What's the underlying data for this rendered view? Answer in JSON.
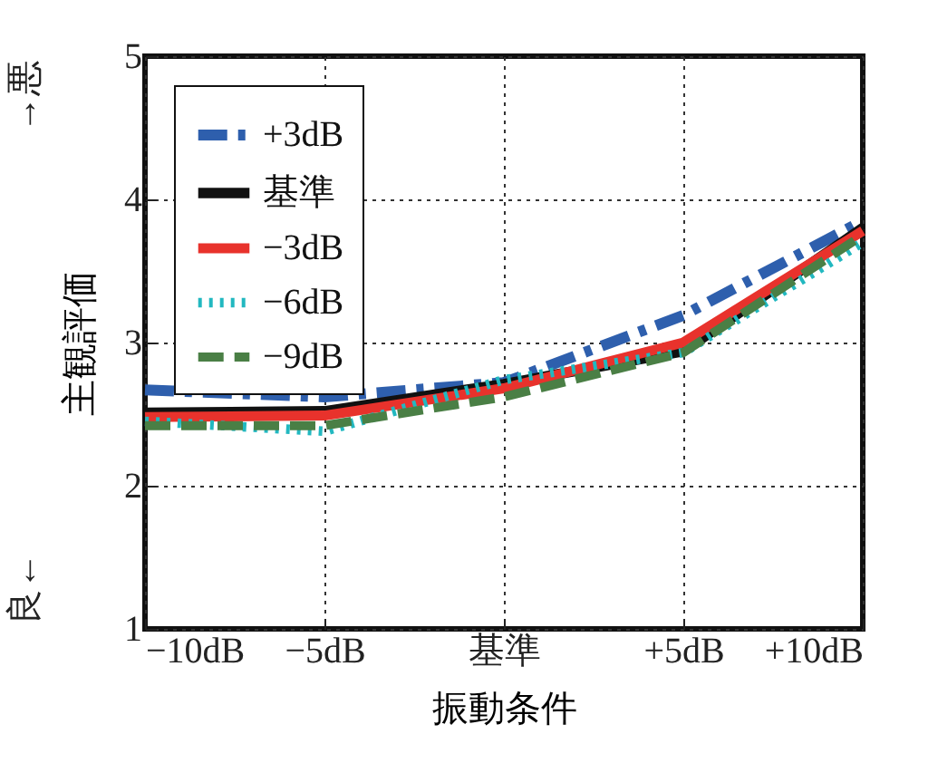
{
  "chart_data": {
    "type": "line",
    "xlabel": "振動条件",
    "ylabel": "主観評価",
    "annotations": [
      "良←",
      "→悪"
    ],
    "categories": [
      "−10dB",
      "−5dB",
      "基準",
      "+5dB",
      "+10dB"
    ],
    "series": [
      {
        "name": "+3dB",
        "color": "#2e5fad",
        "line_style": "dashdot",
        "values": [
          2.67,
          2.62,
          2.72,
          3.19,
          3.85
        ]
      },
      {
        "name": "基準",
        "color": "#111111",
        "line_style": "solid",
        "values": [
          2.51,
          2.52,
          2.71,
          2.94,
          3.8
        ]
      },
      {
        "name": "−3dB",
        "color": "#e8322c",
        "line_style": "solid",
        "values": [
          2.48,
          2.49,
          2.68,
          3.0,
          3.78
        ]
      },
      {
        "name": "−6dB",
        "color": "#22b8c0",
        "line_style": "dotted",
        "values": [
          2.45,
          2.38,
          2.74,
          2.93,
          3.7
        ]
      },
      {
        "name": "−9dB",
        "color": "#4a7f45",
        "line_style": "dashed",
        "values": [
          2.42,
          2.42,
          2.62,
          2.93,
          3.75
        ]
      }
    ],
    "ylim": [
      1,
      5
    ],
    "yticks": [
      1,
      2,
      3,
      4,
      5
    ],
    "grid": true,
    "legend": "top left",
    "marker": "none"
  }
}
